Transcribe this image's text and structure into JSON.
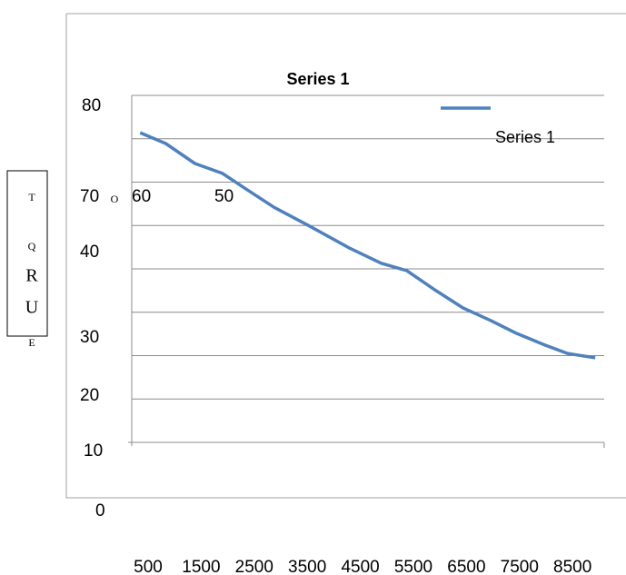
{
  "chart_data": {
    "type": "line",
    "title": "Series 1",
    "y_axis_label": [
      "T",
      "O",
      "Q",
      "R",
      "U",
      "E"
    ],
    "categories": [
      "500",
      "1500",
      "2500",
      "3500",
      "4500",
      "5500",
      "6500",
      "7500",
      "8500"
    ],
    "xlim": [
      200,
      9100
    ],
    "ylim": [
      0,
      80
    ],
    "yticks": [
      80,
      70,
      60,
      50,
      40,
      30,
      20,
      10,
      0
    ],
    "grid": true,
    "legend": "upper right",
    "series": [
      {
        "name": "Series 1",
        "color": "#4f81bd",
        "x": [
          360,
          840,
          1390,
          1910,
          2330,
          2880,
          3530,
          4300,
          4900,
          5380,
          5930,
          6440,
          6960,
          7420,
          7990,
          8410,
          8930
        ],
        "values": [
          71.4,
          68.9,
          64.3,
          62,
          58.6,
          54.2,
          50,
          44.8,
          41.3,
          39.6,
          35,
          31,
          28.1,
          25.3,
          22.4,
          20.5,
          19.5
        ]
      }
    ]
  }
}
